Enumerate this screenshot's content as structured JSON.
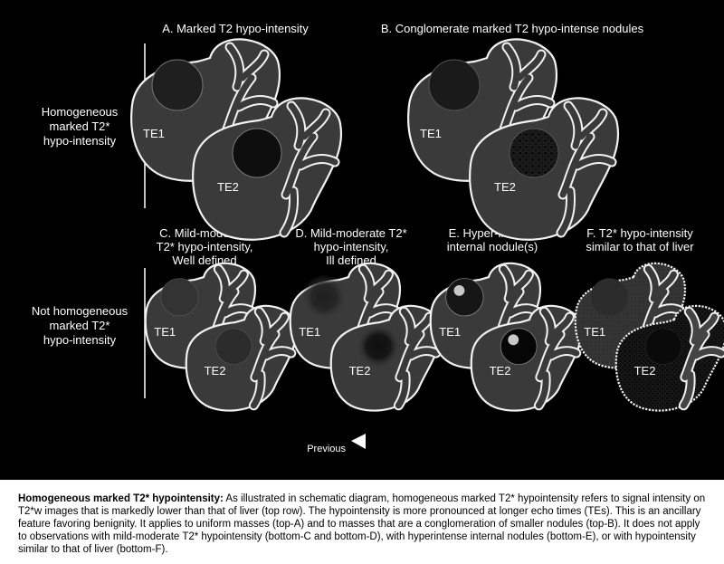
{
  "rows": [
    {
      "label_lines": [
        "Homogeneous",
        "marked T2*",
        "hypo-intensity"
      ]
    },
    {
      "label_lines": [
        "Not homogeneous",
        "marked T2*",
        "hypo-intensity"
      ]
    }
  ],
  "panels": [
    {
      "id": "A",
      "title_lines": [
        "A. Marked T2  hypo-intensity"
      ],
      "variant": "homogeneous-dark"
    },
    {
      "id": "B",
      "title_lines": [
        "B. Conglomerate marked T2 hypo-intense nodules"
      ],
      "variant": "conglomerate"
    },
    {
      "id": "C",
      "title_lines": [
        "C. Mild-moderate",
        "T2* hypo-intensity,",
        "Well defined"
      ],
      "variant": "mild-well-defined"
    },
    {
      "id": "D",
      "title_lines": [
        "D. Mild-moderate T2*",
        "hypo-intensity,",
        "Ill defined"
      ],
      "variant": "mild-ill-defined"
    },
    {
      "id": "E",
      "title_lines": [
        "E.  Hyper-intense",
        "internal nodule(s)"
      ],
      "variant": "hyperintense-nodule"
    },
    {
      "id": "F",
      "title_lines": [
        "F. T2* hypo-intensity",
        "similar to that of liver"
      ],
      "variant": "liver-like"
    }
  ],
  "echo_labels": {
    "first": "TE1",
    "second": "TE2"
  },
  "nav": {
    "previous_label": "Previous"
  },
  "caption": {
    "heading": "Homogeneous marked T2* hypointensity:",
    "body": " As illustrated in schematic diagram, homogeneous marked T2* hypointensity refers to signal intensity on T2*w images that is markedly lower than that of liver (top row). The hypointensity is more pronounced at longer echo times (TEs). This is an ancillary feature favoring benignity. It applies to uniform masses (top-A) and to masses that are a conglomeration of smaller nodules (top-B). It does not apply to observations with mild-moderate T2* hypointensity (bottom-C and bottom-D), with hyperintense internal nodules (bottom-E), or with hypointensity similar to that of liver (bottom-F)."
  },
  "colors": {
    "liver": "#3a3a3a",
    "outline": "#f2f2f2",
    "background": "#000000",
    "caption_bg": "#ffffff"
  }
}
